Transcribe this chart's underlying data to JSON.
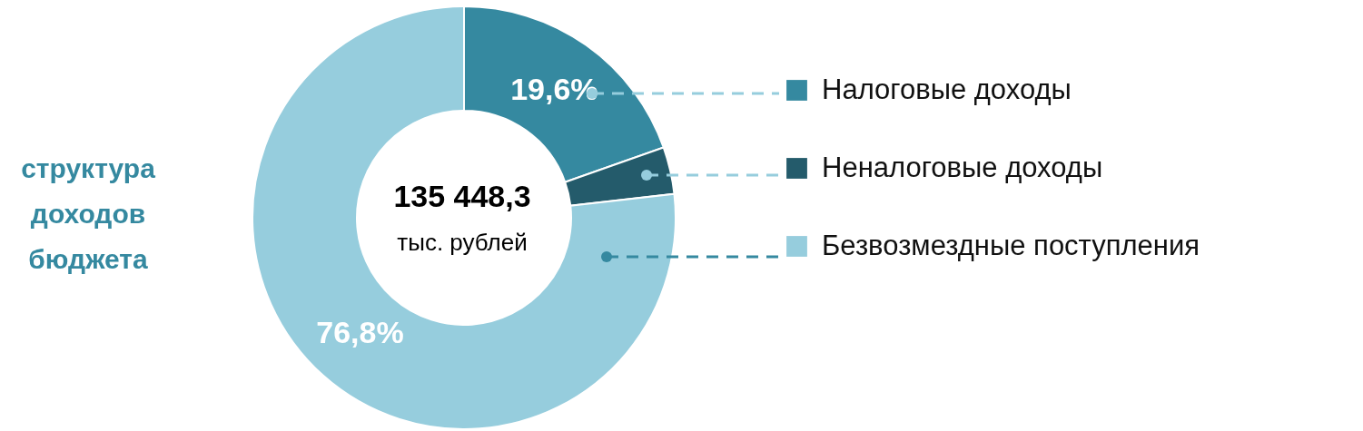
{
  "chart_data": {
    "type": "donut",
    "title": "структура доходов бюджета",
    "categories": [
      "Налоговые доходы",
      "Неналоговые доходы",
      "Безвозмездные поступления"
    ],
    "values": [
      19.6,
      3.6,
      76.8
    ],
    "colors": [
      "#3589a0",
      "#245b6b",
      "#96cddd"
    ],
    "value_labels": [
      "19,6%",
      null,
      "76,8%"
    ],
    "annotations": [
      "135 448,3",
      "тыс. рублей"
    ],
    "legend": "right"
  }
}
